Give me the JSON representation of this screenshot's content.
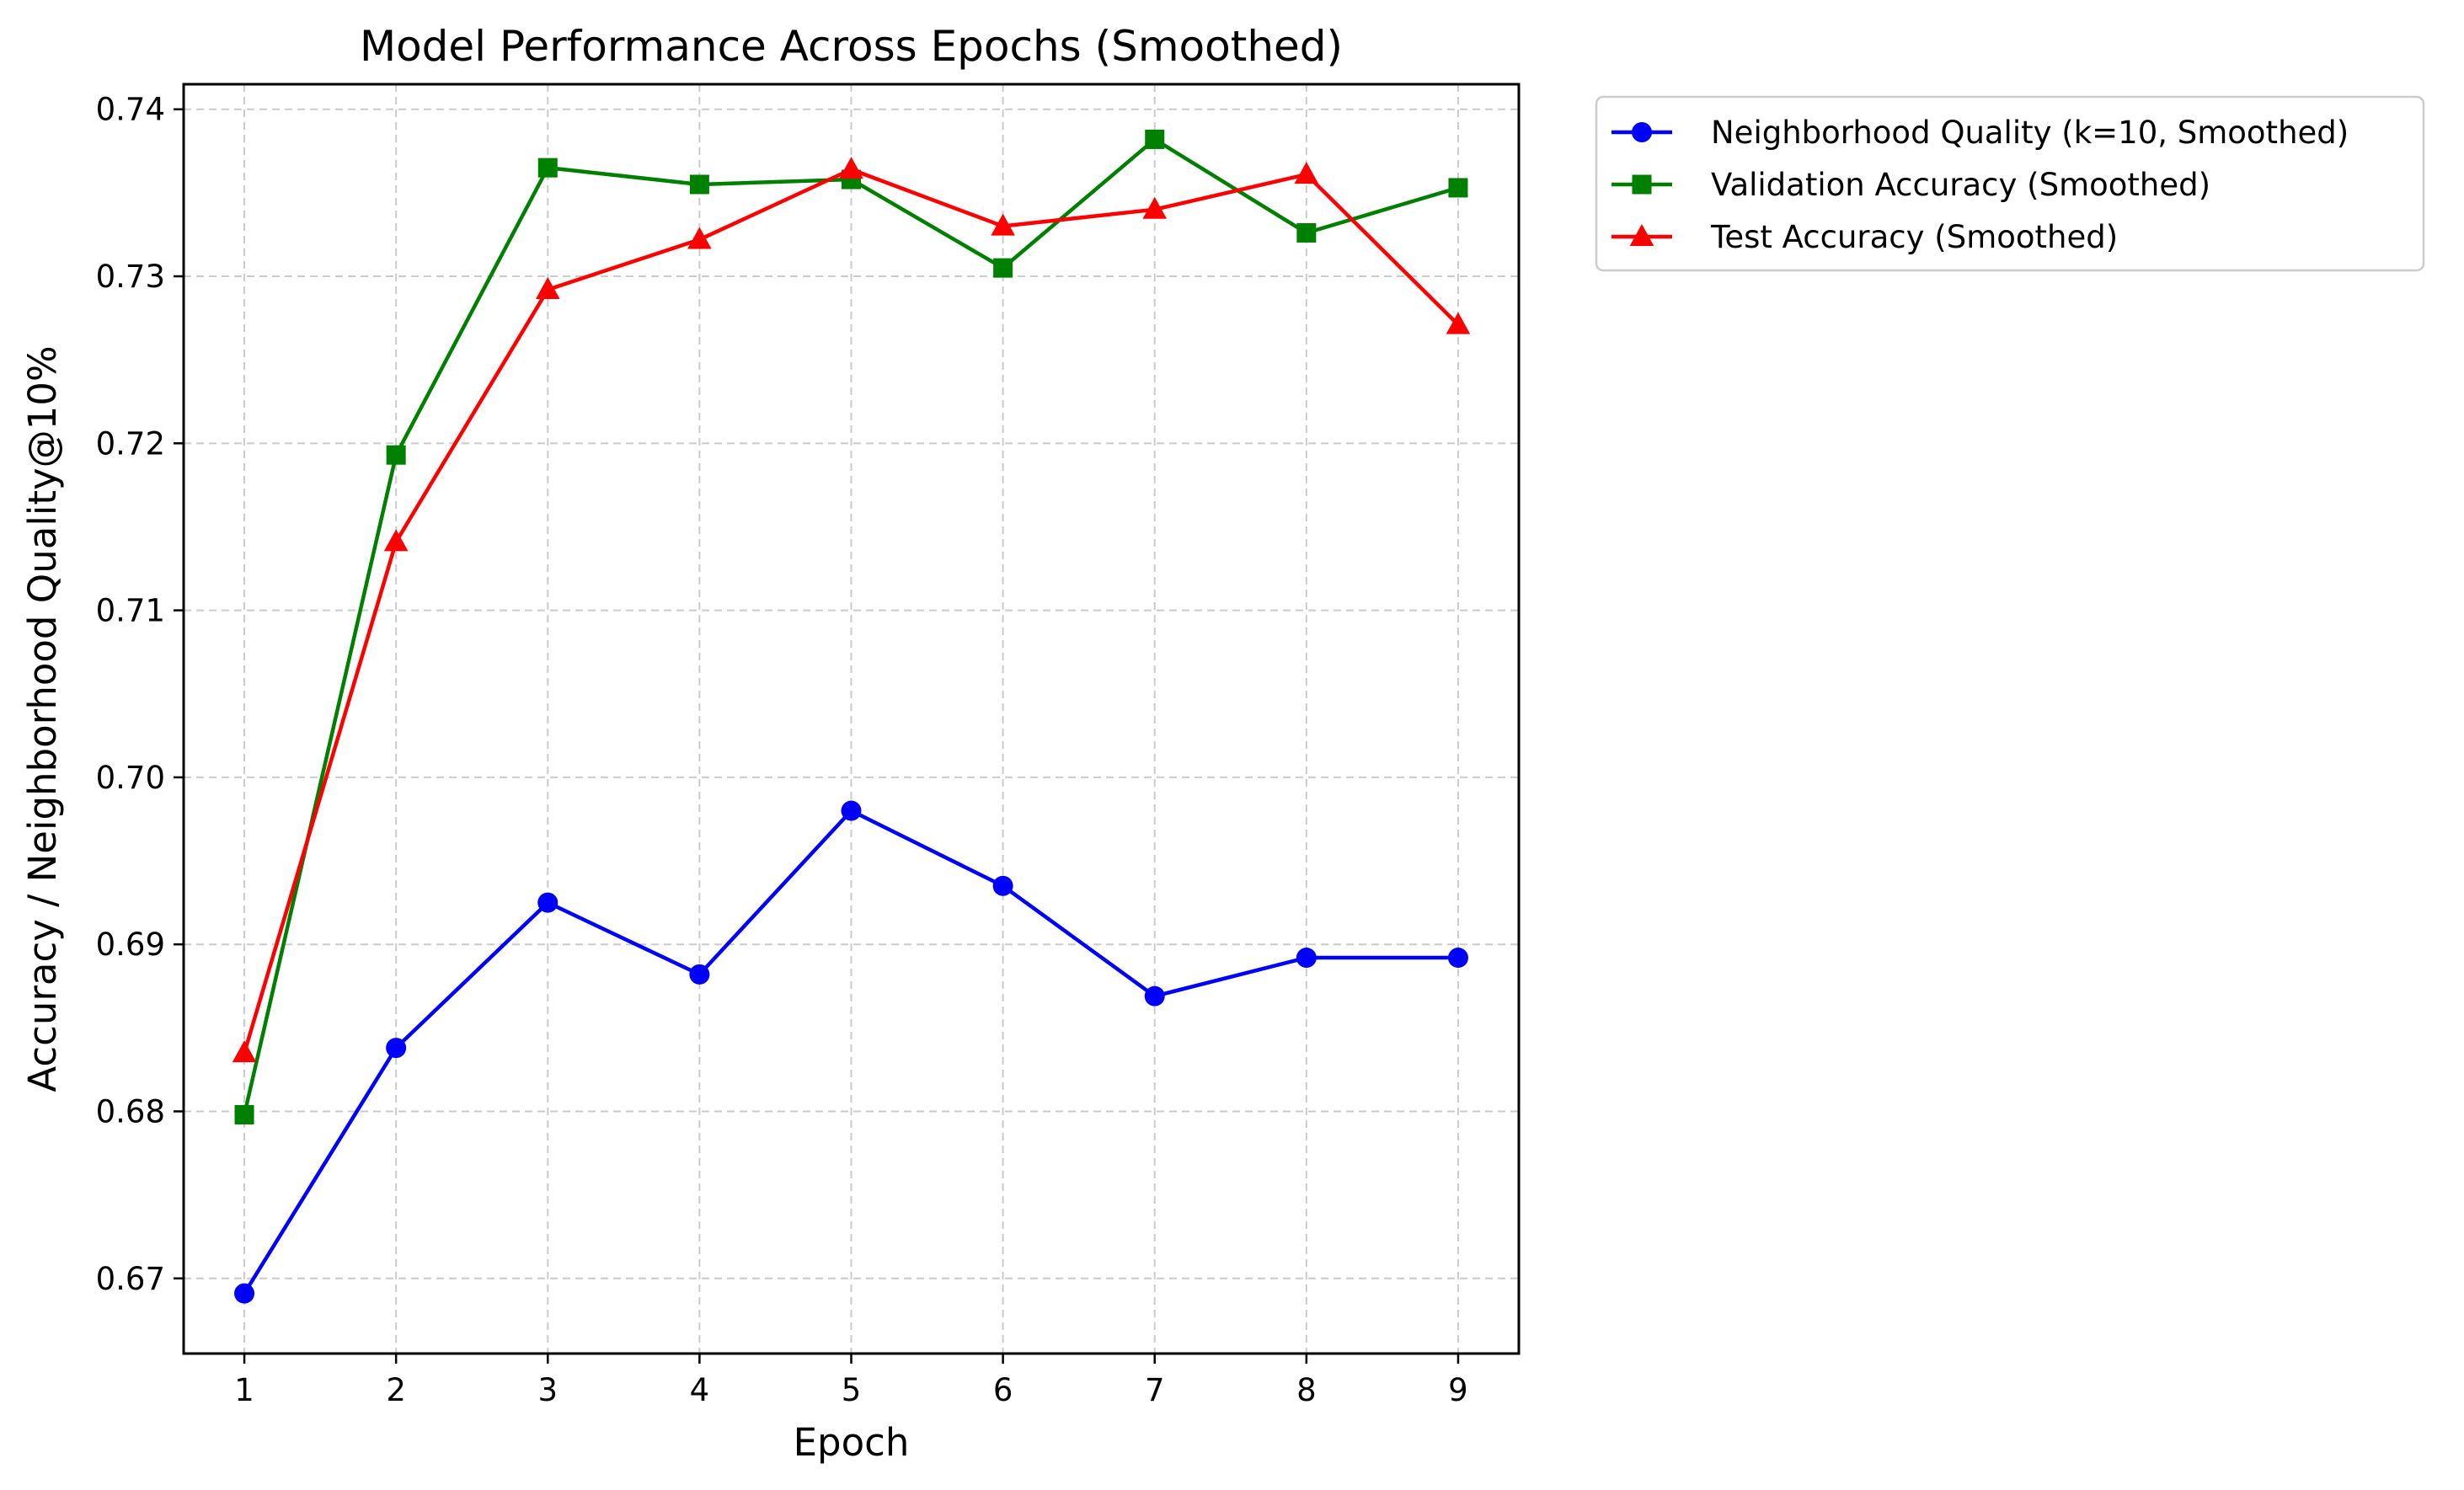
{
  "chart_data": {
    "type": "line",
    "title": "Model Performance Across Epochs (Smoothed)",
    "xlabel": "Epoch",
    "ylabel": "Accuracy / Neighborhood Quality@10%",
    "x": [
      1,
      2,
      3,
      4,
      5,
      6,
      7,
      8,
      9
    ],
    "xticks": [
      "1",
      "2",
      "3",
      "4",
      "5",
      "6",
      "7",
      "8",
      "9"
    ],
    "yticks": [
      "0.67",
      "0.68",
      "0.69",
      "0.70",
      "0.71",
      "0.72",
      "0.73",
      "0.74"
    ],
    "xlim": [
      0.6,
      9.4
    ],
    "ylim": [
      0.6655,
      0.7415
    ],
    "grid": true,
    "legend_position": "outside-top-right",
    "series": [
      {
        "name": "Neighborhood Quality (k=10, Smoothed)",
        "color": "#0000ff",
        "marker": "circle",
        "values": [
          0.6691,
          0.6838,
          0.6925,
          0.6882,
          0.698,
          0.6935,
          0.6869,
          0.6892,
          0.6892
        ]
      },
      {
        "name": "Validation Accuracy (Smoothed)",
        "color": "#008000",
        "marker": "square",
        "values": [
          0.6798,
          0.7193,
          0.7365,
          0.7355,
          0.7358,
          0.7305,
          0.7382,
          0.7326,
          0.7353
        ]
      },
      {
        "name": "Test Accuracy (Smoothed)",
        "color": "#ff0000",
        "marker": "triangle",
        "values": [
          0.6835,
          0.7141,
          0.7292,
          0.7322,
          0.7364,
          0.733,
          0.734,
          0.7361,
          0.7271
        ]
      }
    ]
  }
}
